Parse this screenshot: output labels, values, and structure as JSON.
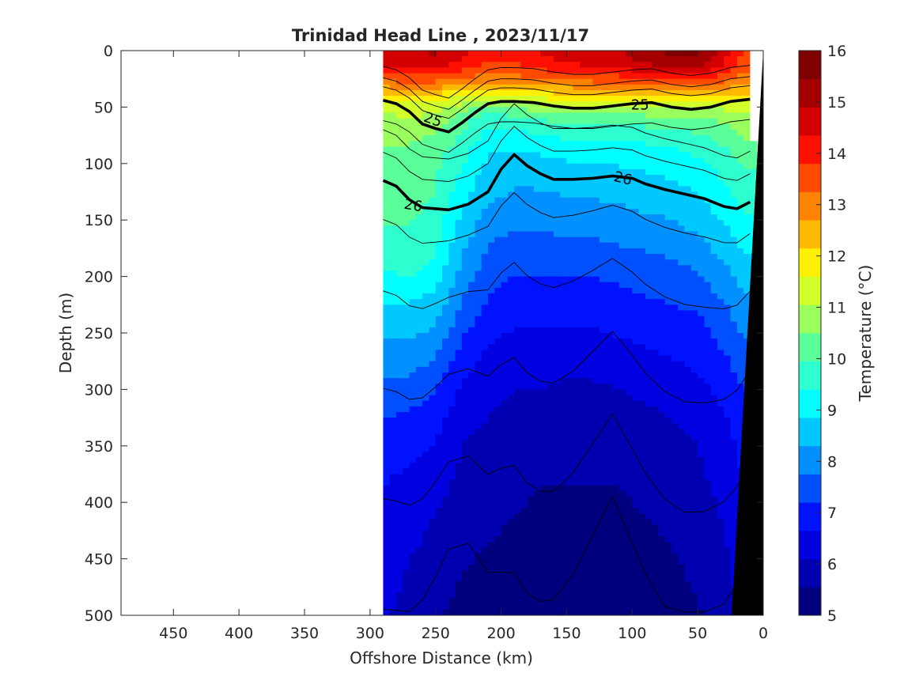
{
  "chart_data": {
    "type": "heatmap",
    "title": "Trinidad Head Line , 2023/11/17",
    "xlabel": "Offshore Distance (km)",
    "ylabel": "Depth (m)",
    "xlim": [
      490,
      0
    ],
    "ylim": [
      0,
      500
    ],
    "x_reversed": true,
    "y_reversed": true,
    "x_ticks": [
      "450",
      "400",
      "350",
      "300",
      "250",
      "200",
      "150",
      "100",
      "50",
      "0"
    ],
    "y_ticks": [
      "0",
      "50",
      "100",
      "150",
      "200",
      "250",
      "300",
      "350",
      "400",
      "450",
      "500"
    ],
    "grid": false,
    "data_extent_km": [
      290,
      10
    ],
    "colorbar": {
      "label": "Temperature (°C)",
      "min": 5,
      "max": 16,
      "ticks": [
        "5",
        "6",
        "7",
        "8",
        "9",
        "10",
        "11",
        "12",
        "13",
        "14",
        "15",
        "16"
      ],
      "colors": [
        "#00007f",
        "#0000b0",
        "#0000e0",
        "#0012ff",
        "#0050ff",
        "#0090ff",
        "#00c8ff",
        "#00ffff",
        "#2effd0",
        "#5aff9a",
        "#9aff5c",
        "#d2ff2a",
        "#fff000",
        "#ffba00",
        "#ff8200",
        "#ff4a00",
        "#ff1000",
        "#d20000",
        "#a50000",
        "#7f0000"
      ]
    },
    "temperature_field": {
      "x": [
        290,
        270,
        250,
        230,
        210,
        190,
        170,
        150,
        130,
        110,
        90,
        70,
        50,
        30,
        15
      ],
      "depth": [
        0,
        10,
        20,
        30,
        40,
        50,
        60,
        75,
        90,
        110,
        130,
        150,
        175,
        200,
        225,
        250,
        275,
        300,
        325,
        350,
        375,
        400,
        425,
        450,
        475,
        500
      ],
      "profiles": [
        [
          14.5,
          14.6,
          13.8,
          12.9,
          12.0,
          11.3,
          10.9,
          10.6,
          10.4,
          10.3,
          10.1,
          10.0,
          9.8,
          9.3,
          8.8,
          8.4,
          8.0,
          7.6,
          7.2,
          6.9,
          6.7,
          6.6,
          6.5,
          6.4,
          6.3,
          6.2
        ],
        [
          14.8,
          14.8,
          14.0,
          13.1,
          12.0,
          11.4,
          11.0,
          10.6,
          10.4,
          10.3,
          10.2,
          10.0,
          9.8,
          9.4,
          8.8,
          8.4,
          8.0,
          7.5,
          7.1,
          6.8,
          6.6,
          6.4,
          6.3,
          6.1,
          6.0,
          5.9
        ],
        [
          15.0,
          14.8,
          14.0,
          13.0,
          12.0,
          11.3,
          10.9,
          10.5,
          10.2,
          10.0,
          9.9,
          9.7,
          9.5,
          9.1,
          8.6,
          8.2,
          7.7,
          7.2,
          6.9,
          6.6,
          6.4,
          6.2,
          6.0,
          5.9,
          5.8,
          5.6
        ],
        [
          14.6,
          14.2,
          13.6,
          12.6,
          11.6,
          10.8,
          10.2,
          9.9,
          9.6,
          9.3,
          9.0,
          8.7,
          8.4,
          8.1,
          7.7,
          7.3,
          6.9,
          6.6,
          6.3,
          6.1,
          6.0,
          5.8,
          5.7,
          5.6,
          5.5,
          5.4
        ],
        [
          14.0,
          13.8,
          13.4,
          12.5,
          11.4,
          10.4,
          9.6,
          9.2,
          8.9,
          8.6,
          8.4,
          8.1,
          7.7,
          7.4,
          7.1,
          6.8,
          6.5,
          6.3,
          6.1,
          5.9,
          5.8,
          5.7,
          5.6,
          5.5,
          5.4,
          5.3
        ],
        [
          13.8,
          13.8,
          13.4,
          12.6,
          11.6,
          10.6,
          9.8,
          9.2,
          8.8,
          8.4,
          8.2,
          7.9,
          7.5,
          7.2,
          6.9,
          6.6,
          6.3,
          6.1,
          5.9,
          5.8,
          5.7,
          5.6,
          5.5,
          5.4,
          5.3,
          5.2
        ],
        [
          14.4,
          14.2,
          13.6,
          12.8,
          11.8,
          10.8,
          10.0,
          9.4,
          8.9,
          8.5,
          8.2,
          7.9,
          7.5,
          7.2,
          6.9,
          6.6,
          6.3,
          6.1,
          5.9,
          5.7,
          5.6,
          5.5,
          5.4,
          5.3,
          5.2,
          5.2
        ],
        [
          14.7,
          14.4,
          13.8,
          12.9,
          12.0,
          11.0,
          10.2,
          9.5,
          9.0,
          8.6,
          8.3,
          8.0,
          7.6,
          7.2,
          6.9,
          6.6,
          6.3,
          6.0,
          5.8,
          5.7,
          5.6,
          5.5,
          5.4,
          5.3,
          5.2,
          5.1
        ],
        [
          14.8,
          14.6,
          14.0,
          13.0,
          12.0,
          11.0,
          10.2,
          9.5,
          9.0,
          8.6,
          8.3,
          8.0,
          7.6,
          7.2,
          6.9,
          6.6,
          6.3,
          6.0,
          5.8,
          5.7,
          5.6,
          5.5,
          5.4,
          5.3,
          5.2,
          5.1
        ],
        [
          14.9,
          14.6,
          14.0,
          13.1,
          12.0,
          11.0,
          10.2,
          9.6,
          9.1,
          8.7,
          8.4,
          8.1,
          7.7,
          7.3,
          7.0,
          6.7,
          6.4,
          6.1,
          5.9,
          5.7,
          5.6,
          5.5,
          5.4,
          5.3,
          5.2,
          5.1
        ],
        [
          15.4,
          15.0,
          14.3,
          13.3,
          12.2,
          11.1,
          10.3,
          9.6,
          9.2,
          8.8,
          8.5,
          8.2,
          7.8,
          7.4,
          7.1,
          6.8,
          6.5,
          6.2,
          6.0,
          5.8,
          5.7,
          5.6,
          5.5,
          5.4,
          5.3,
          5.2
        ],
        [
          15.6,
          15.3,
          14.4,
          13.4,
          12.2,
          11.1,
          10.3,
          9.7,
          9.3,
          8.9,
          8.6,
          8.3,
          7.9,
          7.5,
          7.2,
          6.9,
          6.6,
          6.3,
          6.1,
          5.9,
          5.8,
          5.7,
          5.6,
          5.5,
          5.4,
          5.3
        ],
        [
          15.6,
          15.3,
          14.5,
          13.4,
          12.2,
          11.2,
          10.5,
          9.9,
          9.5,
          9.1,
          8.8,
          8.5,
          8.1,
          7.7,
          7.3,
          7.0,
          6.8,
          6.5,
          6.3,
          6.1,
          6.0,
          5.9,
          5.8,
          5.7,
          5.6,
          5.5
        ],
        [
          14.6,
          14.4,
          13.8,
          13.0,
          12.0,
          11.2,
          10.6,
          10.2,
          9.8,
          9.5,
          9.2,
          8.9,
          8.5,
          8.1,
          7.7,
          7.4,
          7.1,
          6.8,
          6.6,
          6.4,
          6.3,
          6.2,
          6.1,
          6.0,
          5.9,
          5.8
        ],
        [
          13.8,
          13.6,
          13.2,
          12.7,
          12.0,
          11.4,
          10.9,
          10.6,
          10.2,
          9.9,
          9.6,
          9.3,
          8.9,
          8.5,
          8.1,
          7.8,
          7.5,
          7.2,
          7.0,
          6.8,
          6.7,
          6.6,
          6.5,
          6.4,
          6.3,
          6.2
        ]
      ]
    },
    "density_contours": [
      {
        "label": "25",
        "points": [
          [
            290,
            44
          ],
          [
            280,
            47
          ],
          [
            270,
            54
          ],
          [
            260,
            65
          ],
          [
            250,
            69
          ],
          [
            240,
            72
          ],
          [
            230,
            64
          ],
          [
            220,
            55
          ],
          [
            210,
            47
          ],
          [
            200,
            45
          ],
          [
            190,
            45
          ],
          [
            175,
            46
          ],
          [
            160,
            49
          ],
          [
            145,
            51
          ],
          [
            130,
            51
          ],
          [
            115,
            49
          ],
          [
            100,
            47
          ],
          [
            85,
            46
          ],
          [
            70,
            50
          ],
          [
            55,
            52
          ],
          [
            40,
            50
          ],
          [
            25,
            45
          ],
          [
            10,
            43
          ]
        ]
      },
      {
        "label": "26",
        "points": [
          [
            290,
            115
          ],
          [
            280,
            120
          ],
          [
            270,
            132
          ],
          [
            260,
            139
          ],
          [
            250,
            140
          ],
          [
            240,
            141
          ],
          [
            225,
            136
          ],
          [
            210,
            125
          ],
          [
            200,
            105
          ],
          [
            190,
            92
          ],
          [
            180,
            102
          ],
          [
            170,
            109
          ],
          [
            160,
            114
          ],
          [
            145,
            114
          ],
          [
            130,
            113
          ],
          [
            115,
            111
          ],
          [
            100,
            113
          ],
          [
            90,
            118
          ],
          [
            75,
            123
          ],
          [
            60,
            127
          ],
          [
            45,
            131
          ],
          [
            30,
            138
          ],
          [
            20,
            140
          ],
          [
            10,
            134
          ]
        ]
      }
    ],
    "contour_labels": [
      {
        "text": "25",
        "x": 252,
        "y": 61,
        "rotate": 20
      },
      {
        "text": "25",
        "x": 94,
        "y": 48,
        "rotate": 0
      },
      {
        "text": "26",
        "x": 267,
        "y": 137,
        "rotate": 10
      },
      {
        "text": "26",
        "x": 107,
        "y": 113,
        "rotate": 14
      }
    ],
    "bathymetry_bottom_km": [
      [
        0,
        0
      ],
      [
        24,
        500
      ]
    ]
  }
}
